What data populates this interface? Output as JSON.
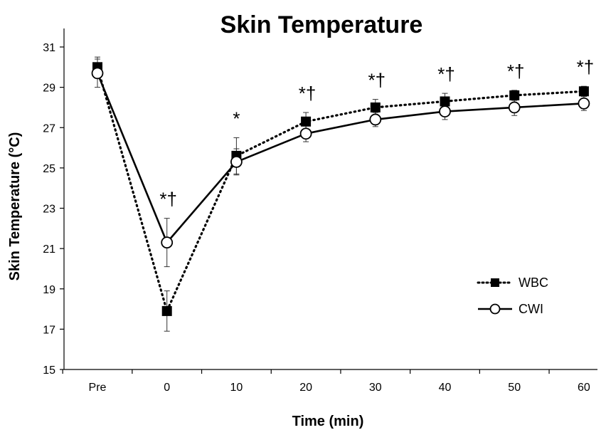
{
  "chart_data": {
    "type": "line",
    "title": "Skin Temperature",
    "xlabel": "Time (min)",
    "ylabel": "Skin Temperature (°C)",
    "categories": [
      "Pre",
      "0",
      "10",
      "20",
      "30",
      "40",
      "50",
      "60"
    ],
    "ylim": [
      15,
      31
    ],
    "yticks": [
      15,
      17,
      19,
      21,
      23,
      25,
      27,
      29,
      31
    ],
    "grid": false,
    "legend_position": "bottom-right",
    "series": [
      {
        "name": "WBC",
        "style": "dotted",
        "marker": "filled-square",
        "values": [
          30.0,
          17.9,
          25.6,
          27.3,
          28.0,
          28.3,
          28.6,
          28.8
        ],
        "error": [
          0.5,
          1.0,
          0.9,
          0.45,
          0.4,
          0.4,
          0.25,
          0.25
        ]
      },
      {
        "name": "CWI",
        "style": "solid",
        "marker": "open-circle",
        "values": [
          29.7,
          21.3,
          25.3,
          26.7,
          27.4,
          27.8,
          28.0,
          28.2
        ],
        "error": [
          0.7,
          1.2,
          0.65,
          0.4,
          0.35,
          0.4,
          0.4,
          0.35
        ]
      }
    ],
    "annotations": [
      "",
      "*†",
      "*",
      "*†",
      "*†",
      "*†",
      "*†",
      "*†"
    ]
  }
}
